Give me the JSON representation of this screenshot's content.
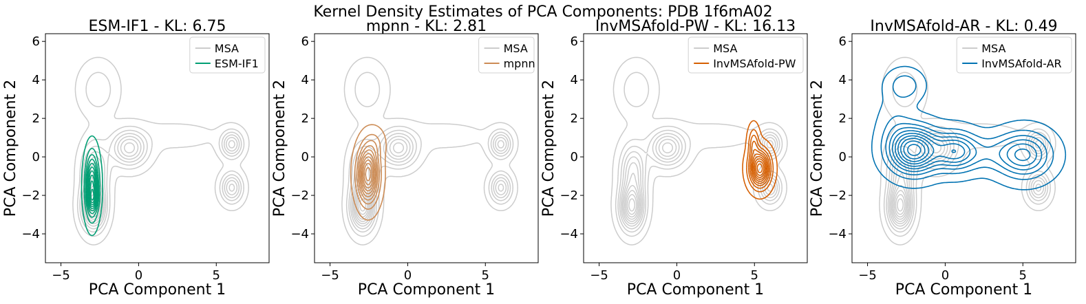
{
  "figure_title": "Kernel Density Estimates of PCA Components: PDB 1f6mA02",
  "chart_data": [
    {
      "type": "kde-contour",
      "title": "ESM-IF1 - KL: 6.75",
      "xlabel": "PCA Component 1",
      "ylabel": "PCA Component 2",
      "xlim": [
        -6,
        8.4
      ],
      "ylim": [
        -5.5,
        6.4
      ],
      "xticks": [
        -5,
        0,
        5
      ],
      "yticks": [
        -4,
        -2,
        0,
        2,
        4,
        6
      ],
      "xtick_labels": [
        "−5",
        "0",
        "5"
      ],
      "ytick_labels": [
        "−4",
        "−2",
        "0",
        "2",
        "4",
        "6"
      ],
      "legend": [
        "MSA",
        "ESM-IF1"
      ],
      "legend_position": "top-right",
      "reference": {
        "name": "MSA",
        "color": "#cccccc"
      },
      "model": {
        "name": "ESM-IF1",
        "color": "#009e73",
        "levels": 10,
        "modes": [
          {
            "cx": -3.0,
            "cy": -1.5,
            "sx": 0.26,
            "sy": 1.0,
            "w": 1.0
          },
          {
            "cx": -2.95,
            "cy": -2.2,
            "sx": 0.2,
            "sy": 0.35,
            "w": 0.35
          }
        ]
      }
    },
    {
      "type": "kde-contour",
      "title": "mpnn - KL: 2.81",
      "xlabel": "PCA Component 1",
      "ylabel": "PCA Component 2",
      "xlim": [
        -6,
        8.4
      ],
      "ylim": [
        -5.5,
        6.4
      ],
      "xticks": [
        -5,
        0,
        5
      ],
      "yticks": [
        -4,
        -2,
        0,
        2,
        4,
        6
      ],
      "xtick_labels": [
        "−5",
        "0",
        "5"
      ],
      "ytick_labels": [
        "−4",
        "−2",
        "0",
        "2",
        "4",
        "6"
      ],
      "legend": [
        "MSA",
        "mpnn"
      ],
      "legend_position": "top-right",
      "reference": {
        "name": "MSA",
        "color": "#cccccc"
      },
      "model": {
        "name": "mpnn",
        "color": "#cc8b54",
        "levels": 10,
        "modes": [
          {
            "cx": -2.55,
            "cy": -0.9,
            "sx": 0.42,
            "sy": 0.9,
            "w": 1.0
          },
          {
            "cx": -2.1,
            "cy": 0.7,
            "sx": 0.4,
            "sy": 0.5,
            "w": 0.12
          }
        ]
      }
    },
    {
      "type": "kde-contour",
      "title": "InvMSAfold-PW - KL: 16.13",
      "xlabel": "PCA Component 1",
      "ylabel": "PCA Component 2",
      "xlim": [
        -6,
        8.4
      ],
      "ylim": [
        -5.5,
        6.4
      ],
      "xticks": [
        -5,
        0,
        5
      ],
      "yticks": [
        -4,
        -2,
        0,
        2,
        4,
        6
      ],
      "xtick_labels": [
        "−5",
        "0",
        "5"
      ],
      "ytick_labels": [
        "−4",
        "−2",
        "0",
        "2",
        "4",
        "6"
      ],
      "legend": [
        "MSA",
        "InvMSAfold-PW"
      ],
      "legend_position": "top-right",
      "reference": {
        "name": "MSA",
        "color": "#cccccc"
      },
      "model": {
        "name": "InvMSAfold-PW",
        "color": "#d55e00",
        "levels": 10,
        "modes": [
          {
            "cx": 5.35,
            "cy": -0.6,
            "sx": 0.42,
            "sy": 0.6,
            "w": 1.0
          },
          {
            "cx": 4.95,
            "cy": 0.7,
            "sx": 0.22,
            "sy": 0.55,
            "w": 0.3
          }
        ]
      }
    },
    {
      "type": "kde-contour",
      "title": "InvMSAfold-AR - KL: 0.49",
      "xlabel": "PCA Component 1",
      "ylabel": "PCA Component 2",
      "xlim": [
        -6,
        8.4
      ],
      "ylim": [
        -5.5,
        6.4
      ],
      "xticks": [
        -5,
        0,
        5
      ],
      "yticks": [
        -4,
        -2,
        0,
        2,
        4,
        6
      ],
      "xtick_labels": [
        "−5",
        "0",
        "5"
      ],
      "ytick_labels": [
        "−4",
        "−2",
        "0",
        "2",
        "4",
        "6"
      ],
      "legend": [
        "MSA",
        "InvMSAfold-AR"
      ],
      "legend_position": "top-right",
      "reference": {
        "name": "MSA",
        "color": "#cccccc"
      },
      "model": {
        "name": "InvMSAfold-AR",
        "color": "#0072b2",
        "levels": 10,
        "modes": [
          {
            "cx": -2.0,
            "cy": 0.35,
            "sx": 1.0,
            "sy": 0.75,
            "w": 1.0
          },
          {
            "cx": 0.6,
            "cy": 0.3,
            "sx": 0.9,
            "sy": 0.65,
            "w": 0.55
          },
          {
            "cx": 5.1,
            "cy": 0.1,
            "sx": 1.1,
            "sy": 0.75,
            "w": 0.55
          },
          {
            "cx": -2.6,
            "cy": 3.7,
            "sx": 0.7,
            "sy": 0.5,
            "w": 0.22
          },
          {
            "cx": -3.2,
            "cy": 1.5,
            "sx": 0.7,
            "sy": 1.0,
            "w": 0.12
          },
          {
            "cx": 2.6,
            "cy": 0.2,
            "sx": 1.4,
            "sy": 0.6,
            "w": 0.18
          }
        ]
      }
    }
  ],
  "msa_density": {
    "levels": 11,
    "modes": [
      {
        "cx": -2.9,
        "cy": -2.6,
        "sx": 0.5,
        "sy": 0.75,
        "w": 1.0
      },
      {
        "cx": -2.8,
        "cy": -0.7,
        "sx": 0.55,
        "sy": 0.9,
        "w": 0.55
      },
      {
        "cx": -0.6,
        "cy": 0.45,
        "sx": 0.75,
        "sy": 0.6,
        "w": 0.65
      },
      {
        "cx": 6.0,
        "cy": 0.65,
        "sx": 0.45,
        "sy": 0.45,
        "w": 0.55
      },
      {
        "cx": 6.0,
        "cy": -1.6,
        "sx": 0.45,
        "sy": 0.5,
        "w": 0.55
      },
      {
        "cx": -2.6,
        "cy": 3.5,
        "sx": 0.75,
        "sy": 0.85,
        "w": 0.22
      },
      {
        "cx": 2.2,
        "cy": 1.1,
        "sx": 2.4,
        "sy": 0.55,
        "w": 0.06
      },
      {
        "cx": 4.4,
        "cy": 3.55,
        "sx": 0.22,
        "sy": 0.16,
        "w": 0.03
      },
      {
        "cx": 1.5,
        "cy": -2.0,
        "sx": 0.9,
        "sy": 0.5,
        "w": 0.03
      }
    ]
  }
}
